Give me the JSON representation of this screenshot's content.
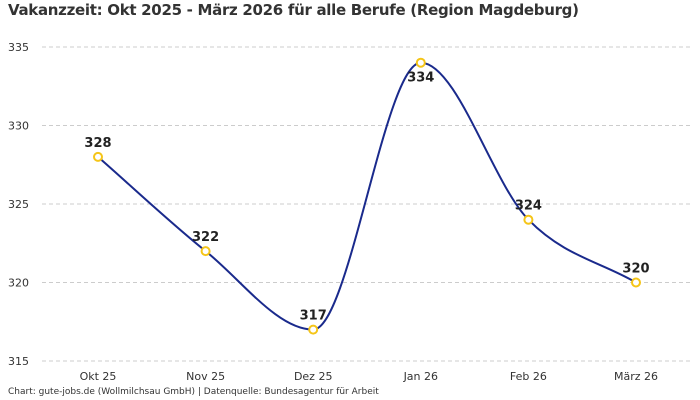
{
  "chart_data": {
    "type": "line",
    "title": "Vakanzzeit: Okt 2025 - März 2026 für alle Berufe (Region Magdeburg)",
    "categories": [
      "Okt 25",
      "Nov 25",
      "Dez 25",
      "Jan 26",
      "Feb 26",
      "März 26"
    ],
    "series": [
      {
        "name": "Vakanzzeit",
        "values": [
          328,
          322,
          317,
          334,
          324,
          320
        ]
      }
    ],
    "ylim": [
      315,
      335
    ],
    "yticks": [
      315,
      320,
      325,
      330,
      335
    ],
    "xlabel": "",
    "ylabel": "",
    "grid": true,
    "line_color": "#1a2a8c",
    "marker_color": "#f5c518"
  },
  "footer": "Chart: gute-jobs.de (Wollmilchsau GmbH) | Datenquelle: Bundesagentur für Arbeit"
}
